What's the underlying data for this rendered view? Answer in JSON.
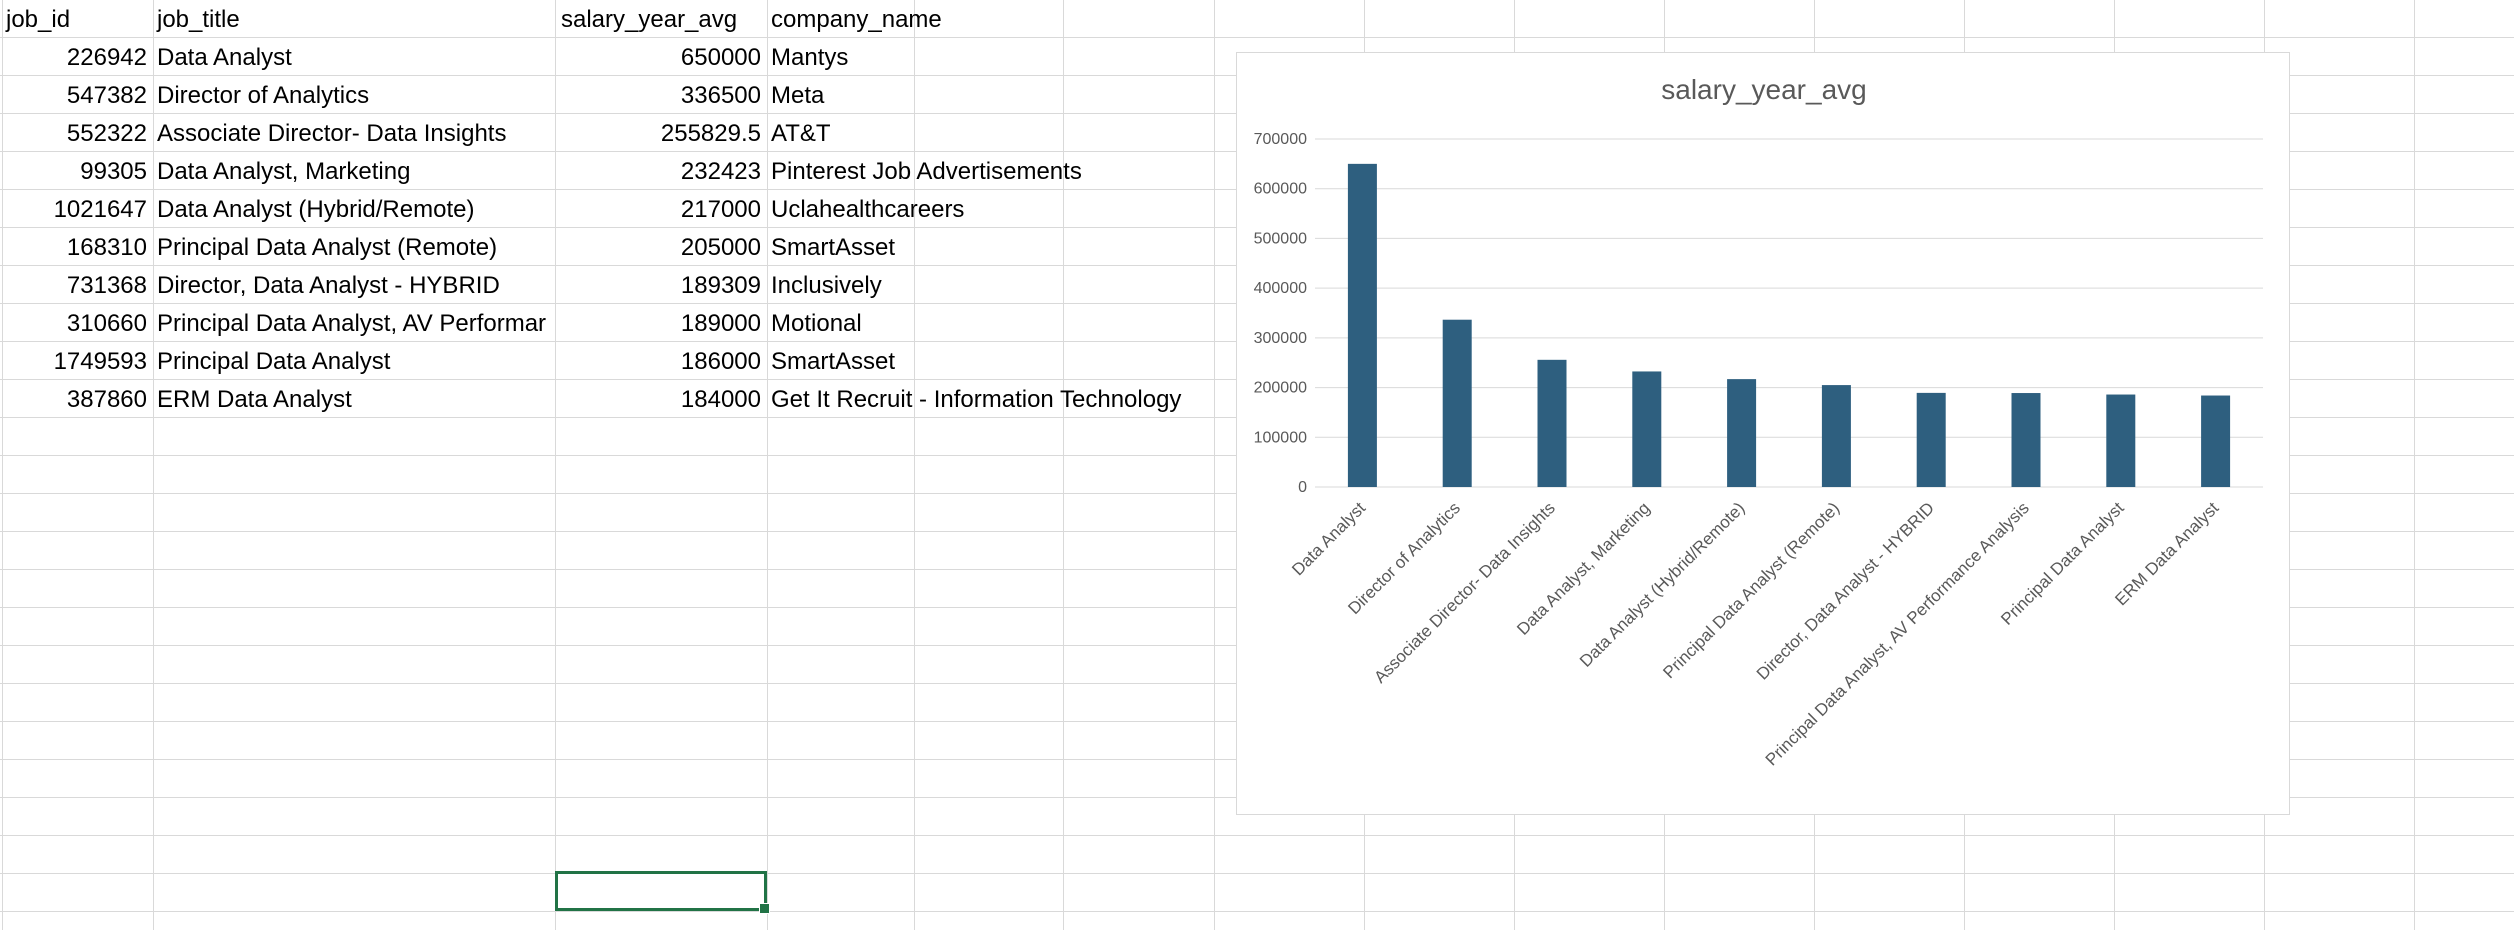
{
  "sheet": {
    "headers": [
      "job_id",
      "job_title",
      "salary_year_avg",
      "company_name"
    ],
    "rows": [
      {
        "job_id": "226942",
        "job_title": "Data Analyst",
        "salary": "650000",
        "company": "Mantys"
      },
      {
        "job_id": "547382",
        "job_title": "Director of Analytics",
        "salary": "336500",
        "company": "Meta"
      },
      {
        "job_id": "552322",
        "job_title": "Associate Director- Data Insights",
        "salary": "255829.5",
        "company": "AT&T"
      },
      {
        "job_id": "99305",
        "job_title": "Data Analyst, Marketing",
        "salary": "232423",
        "company": "Pinterest Job Advertisements"
      },
      {
        "job_id": "1021647",
        "job_title": "Data Analyst (Hybrid/Remote)",
        "salary": "217000",
        "company": "Uclahealthcareers"
      },
      {
        "job_id": "168310",
        "job_title": "Principal Data Analyst (Remote)",
        "salary": "205000",
        "company": "SmartAsset"
      },
      {
        "job_id": "731368",
        "job_title": "Director, Data Analyst - HYBRID",
        "salary": "189309",
        "company": "Inclusively"
      },
      {
        "job_id": "310660",
        "job_title": "Principal Data Analyst, AV Performar",
        "salary": "189000",
        "company": "Motional"
      },
      {
        "job_id": "1749593",
        "job_title": "Principal Data Analyst",
        "salary": "186000",
        "company": "SmartAsset"
      },
      {
        "job_id": "387860",
        "job_title": "ERM Data Analyst",
        "salary": "184000",
        "company": "Get It Recruit - Information Technology"
      }
    ],
    "selection_color": "#217346",
    "grid_color": "#d9d9d9"
  },
  "chart_data": {
    "type": "bar",
    "title": "salary_year_avg",
    "categories": [
      "Data Analyst",
      "Director of Analytics",
      "Associate Director- Data Insights",
      "Data Analyst, Marketing",
      "Data Analyst (Hybrid/Remote)",
      "Principal Data Analyst (Remote)",
      "Director, Data Analyst - HYBRID",
      "Principal Data Analyst, AV Performance Analysis",
      "Principal Data Analyst",
      "ERM Data Analyst"
    ],
    "values": [
      650000,
      336500,
      255829.5,
      232423,
      217000,
      205000,
      189309,
      189000,
      186000,
      184000
    ],
    "ylim": [
      0,
      700000
    ],
    "yticks": [
      0,
      100000,
      200000,
      300000,
      400000,
      500000,
      600000,
      700000
    ],
    "ytick_labels": [
      "0",
      "100000",
      "200000",
      "300000",
      "400000",
      "500000",
      "600000",
      "700000"
    ],
    "grid": true,
    "legend": "none",
    "bar_color": "#2e5f7f",
    "xlabel": "",
    "ylabel": ""
  }
}
